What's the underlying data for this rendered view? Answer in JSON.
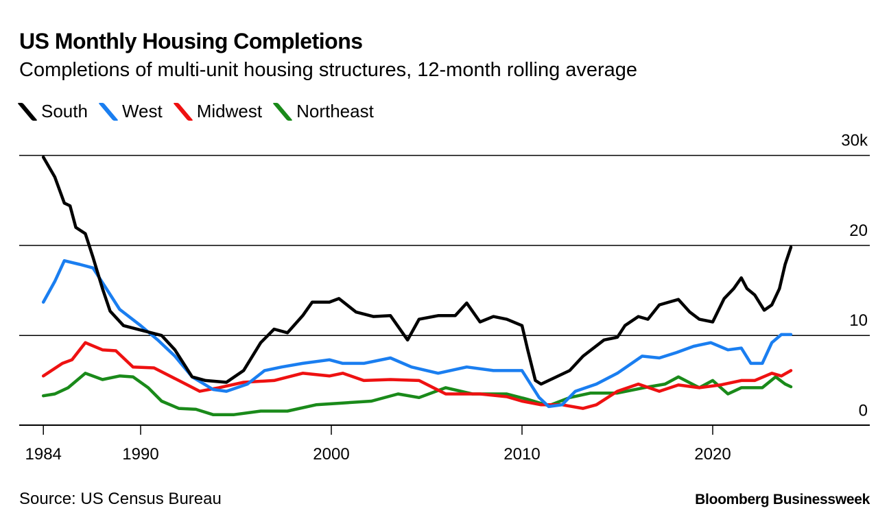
{
  "chart_data": {
    "type": "line",
    "title": "US Monthly Housing Completions",
    "subtitle": "Completions of multi-unit housing structures, 12-month rolling average",
    "source": "Source: US Census Bureau",
    "brand": "Bloomberg Businessweek",
    "xlim": [
      1984.9,
      2024.1
    ],
    "ylim": [
      0,
      30
    ],
    "grid": true,
    "legend_placement": "top-left",
    "x_ticks": [
      {
        "label": "1984",
        "value": 1984.9
      },
      {
        "label": "1990",
        "value": 1990
      },
      {
        "label": "2000",
        "value": 2000
      },
      {
        "label": "2010",
        "value": 2010
      },
      {
        "label": "2020",
        "value": 2020
      }
    ],
    "y_ticks": [
      {
        "label": "0",
        "value": 0
      },
      {
        "label": "10",
        "value": 10
      },
      {
        "label": "20",
        "value": 20
      },
      {
        "label": "30k",
        "value": 30
      }
    ],
    "series": [
      {
        "name": "South",
        "color": "#000000",
        "x": [
          1984.9,
          1985.5,
          1986.0,
          1986.3,
          1986.6,
          1987.1,
          1987.5,
          1988.0,
          1988.4,
          1989.1,
          1990.0,
          1991.1,
          1991.8,
          1992.7,
          1993.4,
          1994.5,
          1995.4,
          1996.3,
          1997.0,
          1997.7,
          1998.5,
          1999.0,
          1999.9,
          2000.4,
          2001.3,
          2002.2,
          2003.1,
          2004.0,
          2004.6,
          2005.6,
          2006.5,
          2007.1,
          2007.8,
          2008.5,
          2009.2,
          2010.0,
          2010.3,
          2010.7,
          2011.0,
          2011.8,
          2012.5,
          2013.2,
          2014.3,
          2015.0,
          2015.4,
          2016.1,
          2016.6,
          2017.2,
          2017.7,
          2018.2,
          2018.8,
          2019.3,
          2020.0,
          2020.6,
          2021.1,
          2021.5,
          2021.8,
          2022.2,
          2022.7,
          2023.1,
          2023.5,
          2023.8,
          2024.1
        ],
        "y": [
          29.8,
          27.6,
          24.7,
          24.4,
          22,
          21.3,
          18.7,
          15.2,
          12.7,
          11.1,
          10.6,
          10,
          8.4,
          5.4,
          5,
          4.8,
          6.1,
          9.2,
          10.7,
          10.3,
          12.2,
          13.7,
          13.7,
          14.1,
          12.6,
          12.1,
          12.2,
          9.5,
          11.8,
          12.2,
          12.2,
          13.6,
          11.5,
          12.1,
          11.8,
          11.1,
          8.4,
          5,
          4.6,
          5.4,
          6.1,
          7.7,
          9.5,
          9.8,
          11.1,
          12.1,
          11.8,
          13.4,
          13.7,
          14,
          12.6,
          11.8,
          11.5,
          14.1,
          15.2,
          16.4,
          15.2,
          14.5,
          12.8,
          13.4,
          15.2,
          17.9,
          19.8
        ]
      },
      {
        "name": "West",
        "color": "#1a7ef0",
        "x": [
          1984.9,
          1985.5,
          1986.0,
          1986.8,
          1987.5,
          1988.2,
          1988.9,
          1990.0,
          1990.9,
          1991.8,
          1992.7,
          1993.8,
          1994.5,
          1995.6,
          1996.5,
          1997.4,
          1998.5,
          1999.9,
          2000.6,
          2001.7,
          2003.1,
          2004.2,
          2005.6,
          2007.1,
          2008.5,
          2010.0,
          2010.9,
          2011.4,
          2012.1,
          2012.8,
          2013.9,
          2015.0,
          2016.3,
          2017.2,
          2018.1,
          2019.0,
          2019.9,
          2020.8,
          2021.5,
          2022.0,
          2022.6,
          2023.1,
          2023.6,
          2024.1
        ],
        "y": [
          13.7,
          16,
          18.3,
          17.9,
          17.5,
          15.2,
          12.9,
          11.1,
          9.5,
          7.7,
          5.4,
          4,
          3.8,
          4.6,
          6.1,
          6.5,
          6.9,
          7.3,
          6.9,
          6.9,
          7.5,
          6.5,
          5.8,
          6.5,
          6.1,
          6.1,
          3.1,
          2.1,
          2.3,
          3.8,
          4.6,
          5.8,
          7.7,
          7.5,
          8.1,
          8.8,
          9.2,
          8.4,
          8.6,
          6.9,
          6.9,
          9.2,
          10.1,
          10.1
        ]
      },
      {
        "name": "Midwest",
        "color": "#ee1111",
        "x": [
          1984.9,
          1985.9,
          1986.4,
          1987.1,
          1988.0,
          1988.7,
          1989.6,
          1990.7,
          1992.0,
          1993.1,
          1994.1,
          1995.4,
          1997.0,
          1998.5,
          1999.9,
          2000.6,
          2001.7,
          2003.1,
          2004.6,
          2006.0,
          2007.8,
          2009.2,
          2010.0,
          2011.0,
          2012.1,
          2013.2,
          2013.9,
          2015.0,
          2016.1,
          2017.2,
          2018.2,
          2019.3,
          2020.4,
          2021.5,
          2022.2,
          2023.1,
          2023.6,
          2024.1
        ],
        "y": [
          5.5,
          6.9,
          7.3,
          9.2,
          8.4,
          8.3,
          6.5,
          6.4,
          5,
          3.8,
          4.2,
          4.8,
          5,
          5.8,
          5.5,
          5.8,
          5,
          5.1,
          5,
          3.5,
          3.5,
          3.2,
          2.7,
          2.3,
          2.3,
          1.9,
          2.3,
          3.8,
          4.6,
          3.8,
          4.5,
          4.2,
          4.5,
          5,
          5,
          5.8,
          5.5,
          6.1
        ]
      },
      {
        "name": "Northeast",
        "color": "#1a8a1a",
        "x": [
          1984.9,
          1985.5,
          1986.2,
          1987.1,
          1988.0,
          1988.9,
          1989.6,
          1990.4,
          1991.1,
          1992.0,
          1992.9,
          1993.8,
          1994.9,
          1996.3,
          1997.7,
          1999.2,
          2000.6,
          2002.1,
          2003.5,
          2004.6,
          2006.0,
          2007.4,
          2009.2,
          2010.3,
          2011.4,
          2012.5,
          2013.6,
          2015.0,
          2016.4,
          2017.5,
          2018.2,
          2019.3,
          2020.0,
          2020.8,
          2021.5,
          2022.6,
          2023.3,
          2023.8,
          2024.1
        ],
        "y": [
          3.3,
          3.5,
          4.2,
          5.8,
          5.1,
          5.5,
          5.4,
          4.2,
          2.7,
          1.9,
          1.8,
          1.2,
          1.2,
          1.6,
          1.6,
          2.3,
          2.5,
          2.7,
          3.5,
          3.1,
          4.2,
          3.5,
          3.5,
          2.9,
          2.2,
          3.1,
          3.6,
          3.6,
          4.2,
          4.6,
          5.4,
          4.2,
          5,
          3.5,
          4.2,
          4.2,
          5.4,
          4.6,
          4.3
        ]
      }
    ]
  }
}
